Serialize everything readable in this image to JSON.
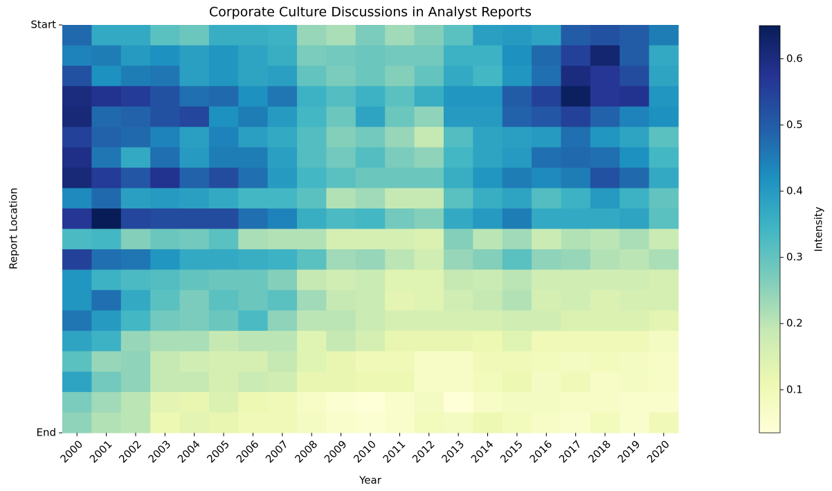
{
  "chart_data": {
    "type": "heatmap",
    "title": "Corporate Culture Discussions in Analyst Reports",
    "xlabel": "Year",
    "ylabel": "Report Location",
    "colorbar_label": "Intensity",
    "categories": [
      "2000",
      "2001",
      "2002",
      "2003",
      "2004",
      "2005",
      "2006",
      "2007",
      "2008",
      "2009",
      "2010",
      "2011",
      "2012",
      "2013",
      "2014",
      "2015",
      "2016",
      "2017",
      "2018",
      "2019",
      "2020"
    ],
    "ylim": [
      0,
      20
    ],
    "yticks": [
      {
        "value": 0,
        "label": "Start"
      },
      {
        "value": 20,
        "label": "End"
      }
    ],
    "clim": [
      0.035,
      0.65
    ],
    "cticks": [
      0.1,
      0.2,
      0.3,
      0.4,
      0.5,
      0.6
    ],
    "colormap": [
      "#ffffd9",
      "#edf8b1",
      "#c7e9b4",
      "#7fcdbb",
      "#41b6c4",
      "#1d91c0",
      "#225ea8",
      "#253494",
      "#081d58"
    ],
    "values": [
      [
        0.48,
        0.37,
        0.37,
        0.31,
        0.29,
        0.36,
        0.36,
        0.35,
        0.24,
        0.22,
        0.27,
        0.23,
        0.26,
        0.31,
        0.39,
        0.4,
        0.38,
        0.5,
        0.52,
        0.5,
        0.45
      ],
      [
        0.44,
        0.45,
        0.4,
        0.42,
        0.39,
        0.41,
        0.38,
        0.36,
        0.27,
        0.28,
        0.29,
        0.28,
        0.28,
        0.35,
        0.35,
        0.42,
        0.48,
        0.55,
        0.62,
        0.5,
        0.37
      ],
      [
        0.52,
        0.42,
        0.45,
        0.46,
        0.39,
        0.41,
        0.38,
        0.39,
        0.3,
        0.27,
        0.29,
        0.26,
        0.3,
        0.37,
        0.34,
        0.41,
        0.47,
        0.6,
        0.57,
        0.53,
        0.38
      ],
      [
        0.6,
        0.58,
        0.56,
        0.52,
        0.47,
        0.48,
        0.42,
        0.46,
        0.35,
        0.32,
        0.35,
        0.31,
        0.36,
        0.41,
        0.41,
        0.5,
        0.55,
        0.64,
        0.57,
        0.58,
        0.41
      ],
      [
        0.61,
        0.48,
        0.49,
        0.52,
        0.54,
        0.42,
        0.45,
        0.4,
        0.34,
        0.29,
        0.38,
        0.29,
        0.25,
        0.4,
        0.4,
        0.49,
        0.51,
        0.55,
        0.49,
        0.44,
        0.42
      ],
      [
        0.55,
        0.49,
        0.48,
        0.44,
        0.39,
        0.44,
        0.39,
        0.37,
        0.32,
        0.26,
        0.28,
        0.24,
        0.19,
        0.32,
        0.38,
        0.39,
        0.4,
        0.47,
        0.41,
        0.38,
        0.31
      ],
      [
        0.59,
        0.46,
        0.37,
        0.47,
        0.4,
        0.45,
        0.45,
        0.39,
        0.32,
        0.28,
        0.32,
        0.27,
        0.25,
        0.34,
        0.38,
        0.4,
        0.47,
        0.48,
        0.47,
        0.42,
        0.34
      ],
      [
        0.61,
        0.56,
        0.51,
        0.58,
        0.49,
        0.53,
        0.47,
        0.4,
        0.34,
        0.31,
        0.29,
        0.29,
        0.29,
        0.36,
        0.41,
        0.45,
        0.43,
        0.45,
        0.52,
        0.48,
        0.37
      ],
      [
        0.43,
        0.48,
        0.39,
        0.4,
        0.39,
        0.37,
        0.34,
        0.34,
        0.31,
        0.21,
        0.23,
        0.19,
        0.19,
        0.31,
        0.36,
        0.38,
        0.32,
        0.35,
        0.4,
        0.35,
        0.3
      ],
      [
        0.57,
        0.65,
        0.54,
        0.53,
        0.53,
        0.53,
        0.47,
        0.44,
        0.36,
        0.33,
        0.34,
        0.28,
        0.26,
        0.37,
        0.4,
        0.45,
        0.37,
        0.37,
        0.37,
        0.38,
        0.31
      ],
      [
        0.33,
        0.34,
        0.26,
        0.29,
        0.28,
        0.31,
        0.22,
        0.21,
        0.21,
        0.16,
        0.16,
        0.16,
        0.15,
        0.26,
        0.2,
        0.23,
        0.18,
        0.21,
        0.2,
        0.22,
        0.18
      ],
      [
        0.55,
        0.47,
        0.46,
        0.41,
        0.37,
        0.37,
        0.36,
        0.35,
        0.31,
        0.23,
        0.24,
        0.2,
        0.17,
        0.24,
        0.26,
        0.31,
        0.25,
        0.24,
        0.21,
        0.2,
        0.22
      ],
      [
        0.41,
        0.35,
        0.33,
        0.32,
        0.3,
        0.29,
        0.29,
        0.26,
        0.19,
        0.17,
        0.18,
        0.14,
        0.14,
        0.19,
        0.18,
        0.2,
        0.17,
        0.17,
        0.17,
        0.17,
        0.16
      ],
      [
        0.41,
        0.47,
        0.37,
        0.31,
        0.27,
        0.31,
        0.29,
        0.31,
        0.23,
        0.19,
        0.18,
        0.13,
        0.14,
        0.17,
        0.19,
        0.21,
        0.16,
        0.17,
        0.15,
        0.16,
        0.16
      ],
      [
        0.46,
        0.4,
        0.34,
        0.28,
        0.27,
        0.29,
        0.33,
        0.25,
        0.2,
        0.2,
        0.18,
        0.16,
        0.16,
        0.16,
        0.16,
        0.17,
        0.17,
        0.15,
        0.15,
        0.15,
        0.13
      ],
      [
        0.38,
        0.35,
        0.24,
        0.22,
        0.22,
        0.19,
        0.2,
        0.2,
        0.14,
        0.19,
        0.16,
        0.12,
        0.12,
        0.12,
        0.11,
        0.14,
        0.1,
        0.1,
        0.1,
        0.1,
        0.08
      ],
      [
        0.31,
        0.24,
        0.25,
        0.19,
        0.17,
        0.16,
        0.16,
        0.19,
        0.14,
        0.12,
        0.1,
        0.1,
        0.07,
        0.07,
        0.1,
        0.1,
        0.09,
        0.08,
        0.09,
        0.08,
        0.07
      ],
      [
        0.38,
        0.28,
        0.25,
        0.19,
        0.19,
        0.16,
        0.18,
        0.17,
        0.12,
        0.12,
        0.11,
        0.11,
        0.07,
        0.07,
        0.09,
        0.11,
        0.08,
        0.1,
        0.07,
        0.08,
        0.07
      ],
      [
        0.27,
        0.23,
        0.2,
        0.13,
        0.12,
        0.15,
        0.11,
        0.1,
        0.07,
        0.05,
        0.04,
        0.06,
        0.08,
        0.04,
        0.07,
        0.08,
        0.08,
        0.07,
        0.07,
        0.06,
        0.06
      ],
      [
        0.25,
        0.21,
        0.2,
        0.11,
        0.13,
        0.12,
        0.1,
        0.1,
        0.08,
        0.06,
        0.05,
        0.06,
        0.09,
        0.08,
        0.11,
        0.09,
        0.07,
        0.06,
        0.09,
        0.06,
        0.1
      ]
    ]
  }
}
